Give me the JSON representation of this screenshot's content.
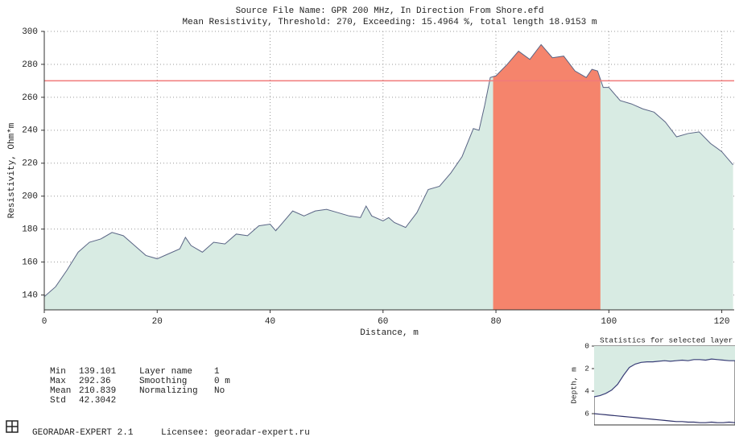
{
  "chart_data": [
    {
      "type": "area",
      "title": "Source File Name: GPR 200 MHz, In Direction From Shore.efd",
      "subtitle": "Mean Resistivity, Threshold: 270, Exceeding: 15.4964 %, total length 18.9153 m",
      "x_label": "Distance, m",
      "y_label": "Resistivity, Ohm*m",
      "x": [
        0,
        2,
        4,
        6,
        8,
        10,
        12,
        14,
        16,
        18,
        20,
        22,
        24,
        25,
        26,
        28,
        30,
        32,
        34,
        36,
        38,
        40,
        41,
        42,
        44,
        46,
        48,
        50,
        52,
        54,
        56,
        57,
        58,
        60,
        61,
        62,
        64,
        66,
        68,
        70,
        72,
        74,
        76,
        77,
        78,
        79,
        80,
        82,
        84,
        86,
        88,
        90,
        92,
        94,
        96,
        97,
        98,
        99,
        100,
        102,
        104,
        106,
        108,
        110,
        112,
        114,
        116,
        118,
        120,
        122
      ],
      "values": [
        139,
        145,
        155,
        166,
        172,
        174,
        178,
        176,
        170,
        164,
        162,
        165,
        168,
        175,
        170,
        166,
        172,
        171,
        177,
        176,
        182,
        183,
        179,
        183,
        191,
        188,
        191,
        192,
        190,
        188,
        187,
        194,
        188,
        185,
        187,
        184,
        181,
        190,
        204,
        206,
        214,
        224,
        241,
        240,
        255,
        272,
        273,
        280,
        288,
        283,
        292,
        284,
        285,
        276,
        272,
        277,
        276,
        266,
        266,
        258,
        256,
        253,
        251,
        245,
        236,
        238,
        239,
        232,
        227,
        219
      ],
      "line_color": "#5a6585",
      "fill_color": "#d8ebe3",
      "threshold": 270,
      "threshold_color": "#f07a7a",
      "exceed_range": [
        79.5,
        98.5
      ],
      "exceed_color": "#f5846c",
      "xlim": [
        0,
        122.2
      ],
      "ylim": [
        131,
        300
      ],
      "xticks": [
        0,
        20,
        40,
        60,
        80,
        100,
        120
      ],
      "yticks": [
        140,
        160,
        180,
        200,
        220,
        240,
        260,
        280,
        300
      ],
      "grid": true
    },
    {
      "type": "line",
      "title": "Statistics for selected layer",
      "y_label": "Depth, m",
      "ylim": [
        0,
        7
      ],
      "yticks": [
        0,
        2,
        4,
        6
      ],
      "inverted": true,
      "fill_color": "#d8ebe3",
      "series": [
        {
          "color": "#3a3f78",
          "values": [
            4.5,
            4.4,
            4.2,
            3.9,
            3.4,
            2.6,
            1.9,
            1.6,
            1.45,
            1.4,
            1.4,
            1.35,
            1.3,
            1.35,
            1.3,
            1.25,
            1.3,
            1.2,
            1.2,
            1.25,
            1.15,
            1.2,
            1.25,
            1.3,
            1.3
          ]
        },
        {
          "color": "#2d3068",
          "values": [
            6.0,
            6.05,
            6.1,
            6.15,
            6.2,
            6.25,
            6.3,
            6.35,
            6.4,
            6.45,
            6.5,
            6.55,
            6.6,
            6.65,
            6.7,
            6.7,
            6.75,
            6.75,
            6.8,
            6.8,
            6.75,
            6.8,
            6.8,
            6.75,
            6.8
          ]
        }
      ]
    }
  ],
  "stats": {
    "rows": [
      [
        "Min",
        "139.101"
      ],
      [
        "Max",
        "292.36"
      ],
      [
        "Mean",
        "210.839"
      ],
      [
        "Std",
        "42.3042"
      ]
    ],
    "layer": [
      [
        "Layer name",
        "1"
      ],
      [
        "Smoothing",
        "0 m"
      ],
      [
        "Normalizing",
        "No"
      ]
    ]
  },
  "footer": {
    "app": "GEORADAR-EXPERT 2.1",
    "licensee": "Licensee: georadar-expert.ru"
  }
}
